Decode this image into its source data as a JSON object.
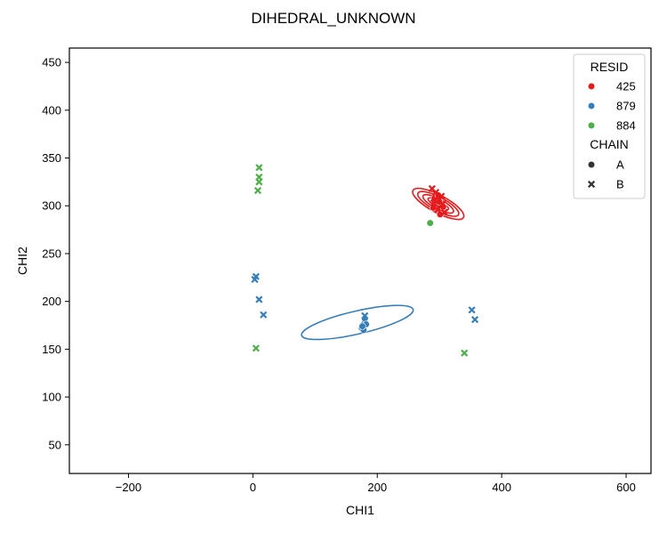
{
  "chart_data": {
    "type": "scatter",
    "title": "DIHEDRAL_UNKNOWN",
    "xlabel": "CHI1",
    "ylabel": "CHI2",
    "xlim": [
      -295,
      640
    ],
    "ylim": [
      20,
      465
    ],
    "xticks": [
      -200,
      0,
      200,
      400,
      600
    ],
    "yticks": [
      50,
      100,
      150,
      200,
      250,
      300,
      350,
      400,
      450
    ],
    "grid": false,
    "legend": {
      "placement": "top-right",
      "hue_title": "RESID",
      "style_title": "CHAIN",
      "hue_entries": [
        {
          "label": "425",
          "color": "#e41a1c"
        },
        {
          "label": "879",
          "color": "#377eb8"
        },
        {
          "label": "884",
          "color": "#4daf4a"
        }
      ],
      "style_entries": [
        {
          "label": "A",
          "marker": "circle"
        },
        {
          "label": "B",
          "marker": "x"
        }
      ]
    },
    "series": [
      {
        "resid": "425",
        "color": "#e41a1c",
        "points_A": [
          [
            292,
            308
          ],
          [
            296,
            300
          ],
          [
            300,
            304
          ],
          [
            303,
            295
          ],
          [
            298,
            311
          ],
          [
            306,
            299
          ],
          [
            290,
            298
          ],
          [
            301,
            291
          ]
        ],
        "points_B": [
          [
            294,
            314
          ],
          [
            299,
            306
          ],
          [
            305,
            302
          ],
          [
            297,
            296
          ],
          [
            288,
            318
          ],
          [
            303,
            310
          ],
          [
            308,
            293
          ],
          [
            291,
            303
          ]
        ]
      },
      {
        "resid": "879",
        "color": "#377eb8",
        "points_A": [
          [
            175,
            172
          ],
          [
            178,
            176
          ],
          [
            180,
            182
          ],
          [
            182,
            176
          ],
          [
            178,
            170
          ],
          [
            176,
            174
          ]
        ],
        "points_B": [
          [
            3,
            223
          ],
          [
            5,
            226
          ],
          [
            10,
            202
          ],
          [
            17,
            186
          ],
          [
            180,
            185
          ],
          [
            352,
            191
          ],
          [
            357,
            181
          ]
        ]
      },
      {
        "resid": "884",
        "color": "#4daf4a",
        "points_A": [
          [
            285,
            282
          ]
        ],
        "points_B": [
          [
            10,
            340
          ],
          [
            10,
            330
          ],
          [
            10,
            325
          ],
          [
            8,
            316
          ],
          [
            5,
            151
          ],
          [
            340,
            146
          ]
        ]
      }
    ],
    "density_contours": [
      {
        "resid": "425",
        "color": "#e41a1c",
        "center": [
          298,
          302
        ],
        "radii_levels": [
          [
            14,
            30
          ],
          [
            11,
            24
          ],
          [
            8,
            18
          ],
          [
            5,
            12
          ],
          [
            3,
            6
          ]
        ],
        "angle_deg": -62
      },
      {
        "resid": "879",
        "color": "#377eb8",
        "center": [
          168,
          178
        ],
        "radii_levels": [
          [
            92,
            12
          ]
        ],
        "angle_deg": -13
      }
    ]
  }
}
